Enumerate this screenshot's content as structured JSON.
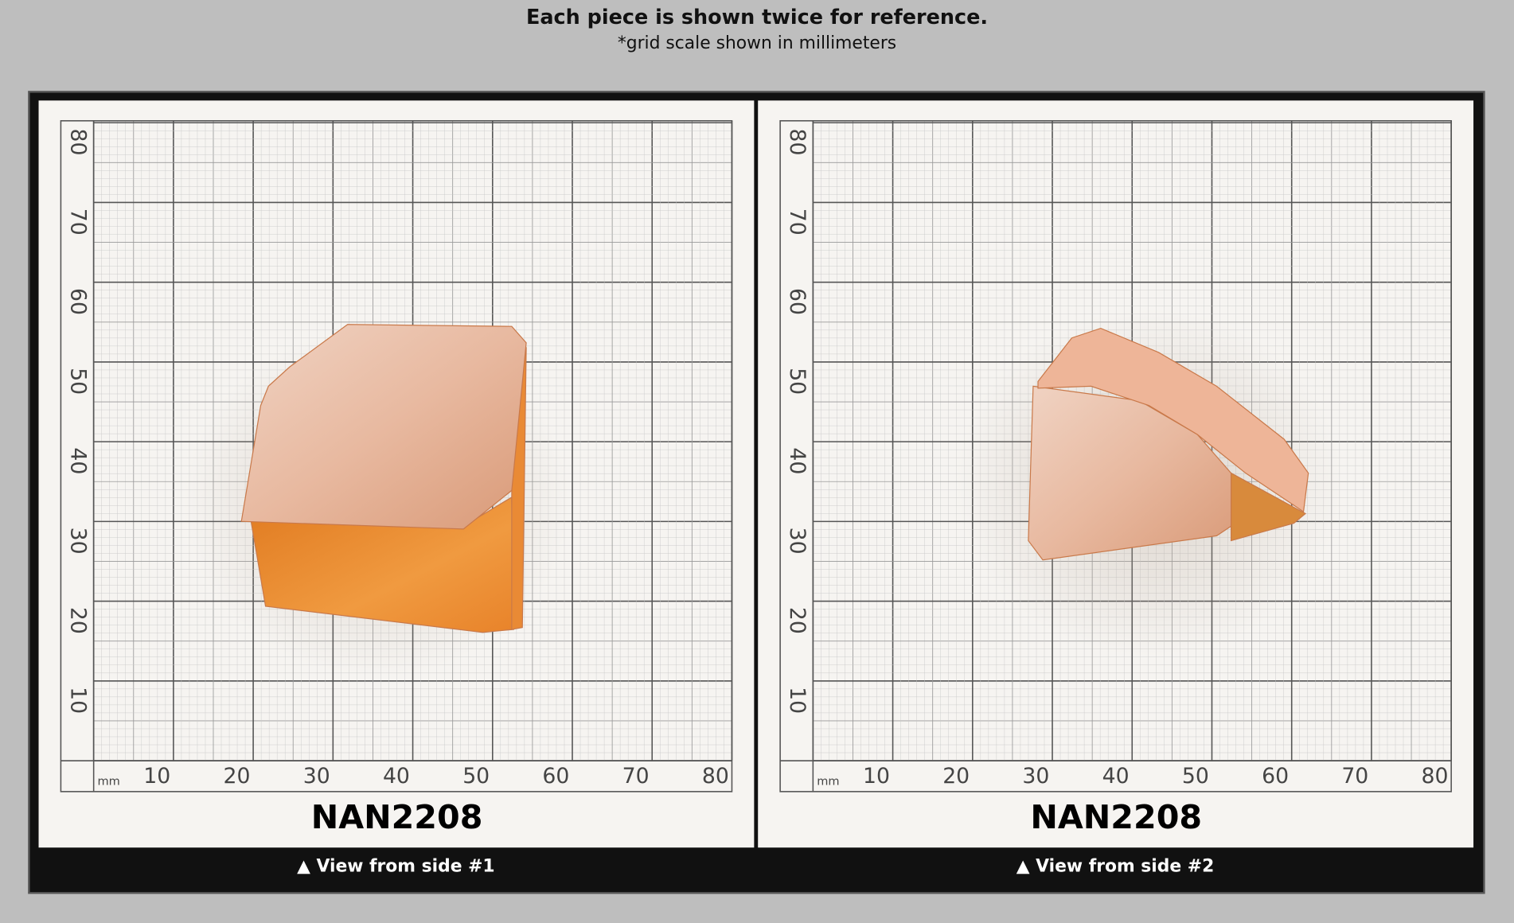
{
  "header": {
    "title": "Each piece is shown twice for reference.",
    "subtitle": "*grid scale shown in millimeters"
  },
  "grid": {
    "unit": "mm",
    "labels": [
      "10",
      "20",
      "30",
      "40",
      "50",
      "60",
      "70",
      "80"
    ]
  },
  "panels": [
    {
      "code": "NAN2208",
      "caption": "▲ View from side #1"
    },
    {
      "code": "NAN2208",
      "caption": "▲ View from side #2"
    }
  ]
}
